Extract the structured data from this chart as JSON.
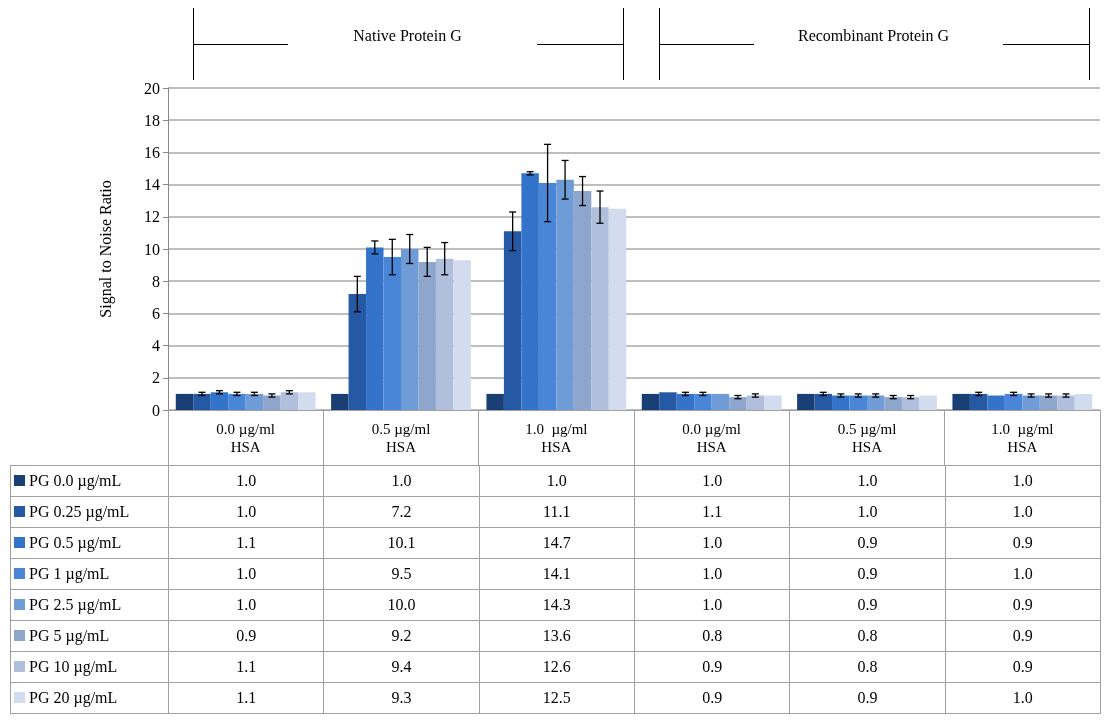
{
  "chart_data": {
    "type": "bar",
    "ylabel": "Signal to Noise Ratio",
    "categories": [
      "0.0 µg/ml\nHSA",
      "0.5 µg/ml\nHSA",
      "1.0  µg/ml\nHSA",
      "0.0 µg/ml\nHSA",
      "0.5 µg/ml\nHSA",
      "1.0  µg/ml\nHSA"
    ],
    "series": [
      {
        "name": "PG 0.0 µg/mL",
        "color": "#1a3f75",
        "values": [
          1.0,
          1.0,
          1.0,
          1.0,
          1.0,
          1.0
        ],
        "value_labels": [
          "1.0",
          "1.0",
          "1.0",
          "1.0",
          "1.0",
          "1.0"
        ],
        "errors": [
          null,
          null,
          null,
          null,
          null,
          null
        ]
      },
      {
        "name": "PG 0.25 µg/mL",
        "color": "#2659a3",
        "values": [
          1.0,
          7.2,
          11.1,
          1.1,
          1.0,
          1.0
        ],
        "value_labels": [
          "1.0",
          "7.2",
          "11.1",
          "1.1",
          "1.0",
          "1.0"
        ],
        "errors": [
          0.1,
          1.1,
          1.2,
          null,
          0.1,
          0.1
        ]
      },
      {
        "name": "PG 0.5 µg/mL",
        "color": "#3373c9",
        "values": [
          1.1,
          10.1,
          14.7,
          1.0,
          0.9,
          0.9
        ],
        "value_labels": [
          "1.1",
          "10.1",
          "14.7",
          "1.0",
          "0.9",
          "0.9"
        ],
        "errors": [
          0.1,
          0.4,
          0.1,
          0.1,
          0.1,
          null
        ]
      },
      {
        "name": "PG 1 µg/mL",
        "color": "#4a86d8",
        "values": [
          1.0,
          9.5,
          14.1,
          1.0,
          0.9,
          1.0
        ],
        "value_labels": [
          "1.0",
          "9.5",
          "14.1",
          "1.0",
          "0.9",
          "1.0"
        ],
        "errors": [
          0.1,
          1.1,
          2.4,
          0.1,
          0.1,
          0.1
        ]
      },
      {
        "name": "PG 2.5 µg/mL",
        "color": "#6f9bd6",
        "values": [
          1.0,
          10.0,
          14.3,
          1.0,
          0.9,
          0.9
        ],
        "value_labels": [
          "1.0",
          "10.0",
          "14.3",
          "1.0",
          "0.9",
          "0.9"
        ],
        "errors": [
          0.1,
          0.9,
          1.2,
          null,
          0.1,
          0.1
        ]
      },
      {
        "name": "PG 5 µg/mL",
        "color": "#8ea6cc",
        "values": [
          0.9,
          9.2,
          13.6,
          0.8,
          0.8,
          0.9
        ],
        "value_labels": [
          "0.9",
          "9.2",
          "13.6",
          "0.8",
          "0.8",
          "0.9"
        ],
        "errors": [
          0.1,
          0.9,
          0.9,
          0.1,
          0.1,
          0.1
        ]
      },
      {
        "name": "PG 10 µg/mL",
        "color": "#b0c0dc",
        "values": [
          1.1,
          9.4,
          12.6,
          0.9,
          0.8,
          0.9
        ],
        "value_labels": [
          "1.1",
          "9.4",
          "12.6",
          "0.9",
          "0.8",
          "0.9"
        ],
        "errors": [
          0.1,
          1.0,
          1.0,
          0.1,
          0.1,
          0.1
        ]
      },
      {
        "name": "PG 20 µg/mL",
        "color": "#d2dcee",
        "values": [
          1.1,
          9.3,
          12.5,
          0.9,
          0.9,
          1.0
        ],
        "value_labels": [
          "1.1",
          "9.3",
          "12.5",
          "0.9",
          "0.9",
          "1.0"
        ],
        "errors": [
          null,
          null,
          null,
          null,
          null,
          null
        ]
      }
    ],
    "ylim": [
      0,
      20
    ],
    "yticks": [
      0,
      2,
      4,
      6,
      8,
      10,
      12,
      14,
      16,
      18,
      20
    ],
    "grid": "y",
    "legend": "bottom",
    "annotations": [
      "Native Protein G",
      "Recombinant Protein G"
    ]
  }
}
